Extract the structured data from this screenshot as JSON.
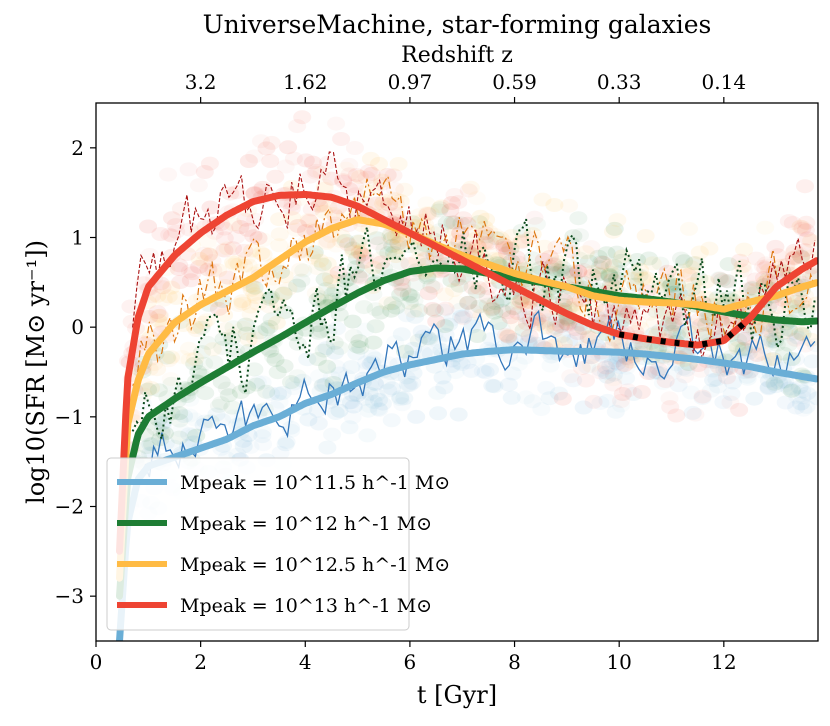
{
  "chart_data": {
    "type": "line",
    "title": "UniverseMachine, star-forming galaxies",
    "top_axis_label": "Redshift z",
    "xlabel": "t [Gyr]",
    "ylabel": "log10(SFR [M⊙ yr⁻¹])",
    "xlim": [
      0,
      13.8
    ],
    "ylim": [
      -3.5,
      2.5
    ],
    "xticks": [
      0,
      2,
      4,
      6,
      8,
      10,
      12
    ],
    "yticks": [
      -3,
      -2,
      -1,
      0,
      1,
      2
    ],
    "top_ticks": [
      {
        "t": 2.0,
        "label": "3.2"
      },
      {
        "t": 4.0,
        "label": "1.62"
      },
      {
        "t": 6.0,
        "label": "0.97"
      },
      {
        "t": 8.0,
        "label": "0.59"
      },
      {
        "t": 10.0,
        "label": "0.33"
      },
      {
        "t": 12.0,
        "label": "0.14"
      }
    ],
    "legend_position": "lower-left",
    "series": [
      {
        "name": "Mpeak = 10^11.5 h^-1 M⊙",
        "mass_exp": "11.5",
        "color": "#6aaed6",
        "x": [
          0.45,
          0.6,
          0.8,
          1.0,
          1.5,
          2.0,
          2.5,
          3.0,
          3.5,
          4.0,
          4.5,
          5.0,
          5.5,
          6.0,
          6.5,
          7.0,
          7.5,
          8.0,
          8.5,
          9.0,
          9.5,
          10.0,
          10.5,
          11.0,
          11.5,
          12.0,
          12.5,
          13.0,
          13.5,
          13.8
        ],
        "y": [
          -3.5,
          -2.2,
          -1.7,
          -1.55,
          -1.45,
          -1.35,
          -1.25,
          -1.1,
          -1.0,
          -0.85,
          -0.75,
          -0.62,
          -0.5,
          -0.42,
          -0.36,
          -0.3,
          -0.27,
          -0.25,
          -0.26,
          -0.27,
          -0.27,
          -0.28,
          -0.3,
          -0.33,
          -0.36,
          -0.4,
          -0.44,
          -0.5,
          -0.55,
          -0.58
        ]
      },
      {
        "name": "Mpeak = 10^12 h^-1 M⊙",
        "mass_exp": "12",
        "color": "#1e7d34",
        "x": [
          0.45,
          0.6,
          0.8,
          1.0,
          1.5,
          2.0,
          2.5,
          3.0,
          3.5,
          4.0,
          4.5,
          5.0,
          5.5,
          6.0,
          6.5,
          7.0,
          7.5,
          8.0,
          8.5,
          9.0,
          9.5,
          10.0,
          10.5,
          11.0,
          11.5,
          12.0,
          12.5,
          13.0,
          13.5,
          13.8
        ],
        "y": [
          -3.0,
          -1.7,
          -1.2,
          -1.0,
          -0.8,
          -0.62,
          -0.45,
          -0.28,
          -0.12,
          0.05,
          0.22,
          0.38,
          0.52,
          0.62,
          0.66,
          0.65,
          0.6,
          0.55,
          0.5,
          0.45,
          0.4,
          0.35,
          0.32,
          0.28,
          0.23,
          0.17,
          0.12,
          0.08,
          0.06,
          0.07
        ]
      },
      {
        "name": "Mpeak = 10^12.5 h^-1 M⊙",
        "mass_exp": "12.5",
        "color": "#ffbb44",
        "x": [
          0.45,
          0.6,
          0.8,
          1.0,
          1.5,
          2.0,
          2.5,
          3.0,
          3.5,
          4.0,
          4.5,
          5.0,
          5.5,
          6.0,
          6.5,
          7.0,
          7.5,
          8.0,
          8.5,
          9.0,
          9.5,
          10.0,
          10.5,
          11.0,
          11.5,
          12.0,
          12.5,
          13.0,
          13.5,
          13.8
        ],
        "y": [
          -2.8,
          -1.1,
          -0.6,
          -0.3,
          0.05,
          0.25,
          0.4,
          0.55,
          0.75,
          0.95,
          1.1,
          1.2,
          1.15,
          1.05,
          0.92,
          0.8,
          0.7,
          0.6,
          0.52,
          0.45,
          0.35,
          0.3,
          0.28,
          0.27,
          0.25,
          0.2,
          0.28,
          0.35,
          0.45,
          0.5
        ]
      },
      {
        "name": "Mpeak = 10^13 h^-1 M⊙",
        "mass_exp": "13",
        "color": "#ee4433",
        "x": [
          0.45,
          0.6,
          0.8,
          1.0,
          1.5,
          2.0,
          2.5,
          3.0,
          3.5,
          4.0,
          4.5,
          5.0,
          5.5,
          6.0,
          6.5,
          7.0,
          7.5,
          8.0,
          8.5,
          9.0,
          9.5,
          10.0,
          10.5,
          11.0,
          11.5,
          12.0,
          12.5,
          13.0,
          13.5,
          13.8
        ],
        "y": [
          -2.5,
          -0.6,
          0.1,
          0.45,
          0.8,
          1.05,
          1.25,
          1.4,
          1.47,
          1.48,
          1.45,
          1.35,
          1.2,
          1.05,
          0.9,
          0.75,
          0.6,
          0.45,
          0.3,
          0.15,
          0.02,
          -0.08,
          -0.13,
          -0.17,
          -0.2,
          -0.15,
          0.1,
          0.45,
          0.65,
          0.75
        ]
      }
    ],
    "quenched_segment": {
      "series": "Mpeak = 10^13 h^-1 M⊙",
      "x_range": [
        10.0,
        12.4
      ],
      "style": "black dashed overlay"
    }
  }
}
